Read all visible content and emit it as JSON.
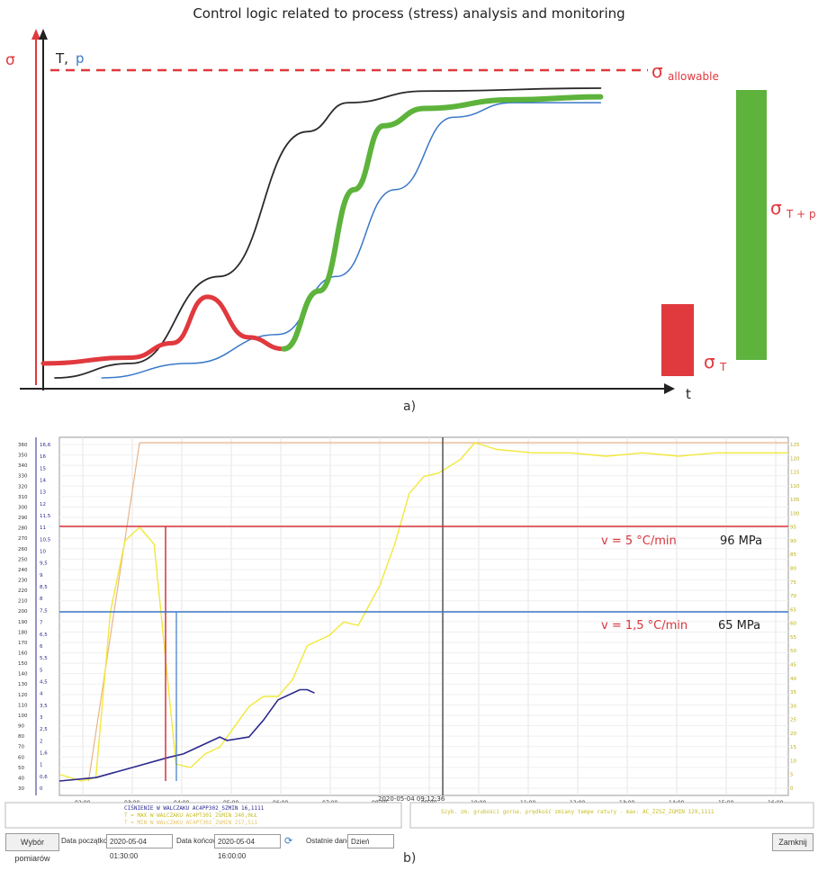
{
  "colors": {
    "red": "#e0393e",
    "green": "#5db33b",
    "blue": "#3a78c9",
    "black": "#2a2a2a",
    "yellow": "#f2e83a",
    "navy": "#2b2a8c",
    "peach": "#e8b48a"
  },
  "chart_data": [
    {
      "type": "line",
      "title": "Control logic related to process (stress) analysis and monitoring",
      "caption": "a)",
      "axis_left_label": "σ",
      "axis_right_label_T": "T,",
      "axis_right_label_p": "p",
      "xlabel": "t",
      "allowable_label": "σ",
      "allowable_sub": "allowable",
      "sigmaT_label": "σ",
      "sigmaT_sub": "T",
      "sigmaTp_label": "σ",
      "sigmaTp_sub": "T + p",
      "series": [
        {
          "color": "black",
          "points": [
            [
              0.02,
              0.0
            ],
            [
              0.15,
              0.05
            ],
            [
              0.3,
              0.35
            ],
            [
              0.45,
              0.85
            ],
            [
              0.52,
              0.95
            ],
            [
              0.65,
              0.99
            ],
            [
              0.95,
              1.0
            ]
          ]
        },
        {
          "color": "blue",
          "points": [
            [
              0.1,
              0.0
            ],
            [
              0.25,
              0.05
            ],
            [
              0.4,
              0.15
            ],
            [
              0.5,
              0.35
            ],
            [
              0.6,
              0.65
            ],
            [
              0.7,
              0.9
            ],
            [
              0.8,
              0.95
            ],
            [
              0.95,
              0.95
            ]
          ]
        },
        {
          "color": "red",
          "points": [
            [
              0.0,
              0.05
            ],
            [
              0.15,
              0.07
            ],
            [
              0.22,
              0.12
            ],
            [
              0.28,
              0.28
            ],
            [
              0.35,
              0.14
            ],
            [
              0.41,
              0.1
            ]
          ]
        },
        {
          "color": "green",
          "points": [
            [
              0.41,
              0.1
            ],
            [
              0.47,
              0.3
            ],
            [
              0.53,
              0.65
            ],
            [
              0.58,
              0.87
            ],
            [
              0.65,
              0.93
            ],
            [
              0.8,
              0.96
            ],
            [
              0.95,
              0.97
            ]
          ]
        }
      ]
    },
    {
      "type": "line",
      "caption": "b)",
      "timestamp": "2020-05-04 09:12:36",
      "x_ticks": [
        "02:00",
        "03:00",
        "04:00",
        "05:00",
        "06:00",
        "07:00",
        "08:00",
        "09:00",
        "10:00",
        "11:00",
        "12:00",
        "13:00",
        "14:00",
        "15:00",
        "16:00"
      ],
      "y_left_ticks": [
        360,
        350,
        340,
        330,
        320,
        310,
        300,
        290,
        280,
        270,
        260,
        250,
        240,
        230,
        220,
        210,
        200,
        190,
        180,
        170,
        160,
        150,
        140,
        130,
        120,
        110,
        100,
        90,
        80,
        70,
        60,
        50,
        40,
        30
      ],
      "y_left2_ticks": [
        "16,6",
        "16",
        "15",
        "14",
        "13",
        "12",
        "11,5",
        "11",
        "10,5",
        "10",
        "9,5",
        "9",
        "8,5",
        "8",
        "7,5",
        "7",
        "6,5",
        "6",
        "5,5",
        "5",
        "4,5",
        "4",
        "3,5",
        "3",
        "2,5",
        "2",
        "1,6",
        "1",
        "0,6",
        "0"
      ],
      "y_right_ticks": [
        125,
        120,
        115,
        110,
        105,
        100,
        95,
        90,
        85,
        80,
        75,
        70,
        65,
        60,
        55,
        50,
        45,
        40,
        35,
        30,
        25,
        20,
        15,
        10,
        5,
        0
      ],
      "annotation_high_label": "v = 5 °C/min",
      "annotation_high_value": "96 MPa",
      "annotation_low_label": "v = 1,5 °C/min",
      "annotation_low_value": "65 MPa",
      "legend_left": [
        "CIŚNIENIE W WALCZAKU AC4PP302_SZMIN 16,1111",
        "T = MAX W WALCZAKU  AC4PT301_ZGMIN 240,0ŁŁ",
        "T = MIN W WALCZAKU  AC4PT302_ZGMIN 217,511"
      ],
      "legend_right": "Szyb. zm. grubości gorna. prędkość zmiany tempe ratury - max: AC_ZZSZ_ZGMIN 129,1111",
      "series": [
        {
          "color": "navy",
          "points": [
            [
              0.0,
              0.0
            ],
            [
              0.05,
              0.01
            ],
            [
              0.1,
              0.04
            ],
            [
              0.15,
              0.07
            ],
            [
              0.17,
              0.08
            ],
            [
              0.2,
              0.11
            ],
            [
              0.22,
              0.13
            ],
            [
              0.23,
              0.12
            ],
            [
              0.26,
              0.13
            ],
            [
              0.28,
              0.18
            ],
            [
              0.3,
              0.24
            ],
            [
              0.33,
              0.27
            ],
            [
              0.34,
              0.27
            ],
            [
              0.35,
              0.26
            ]
          ]
        },
        {
          "color": "yellow",
          "points": [
            [
              0.0,
              0.02
            ],
            [
              0.03,
              0.0
            ],
            [
              0.05,
              0.01
            ],
            [
              0.07,
              0.5
            ],
            [
              0.09,
              0.71
            ],
            [
              0.11,
              0.75
            ],
            [
              0.13,
              0.7
            ],
            [
              0.16,
              0.05
            ],
            [
              0.18,
              0.04
            ],
            [
              0.2,
              0.08
            ],
            [
              0.22,
              0.1
            ],
            [
              0.24,
              0.16
            ],
            [
              0.26,
              0.22
            ],
            [
              0.28,
              0.25
            ],
            [
              0.3,
              0.25
            ],
            [
              0.32,
              0.3
            ],
            [
              0.34,
              0.4
            ],
            [
              0.37,
              0.43
            ],
            [
              0.39,
              0.47
            ],
            [
              0.41,
              0.46
            ],
            [
              0.44,
              0.58
            ],
            [
              0.46,
              0.7
            ],
            [
              0.48,
              0.85
            ],
            [
              0.5,
              0.9
            ],
            [
              0.52,
              0.91
            ],
            [
              0.55,
              0.95
            ],
            [
              0.57,
              1.0
            ],
            [
              0.6,
              0.98
            ],
            [
              0.65,
              0.97
            ],
            [
              0.7,
              0.97
            ],
            [
              0.75,
              0.96
            ],
            [
              0.8,
              0.97
            ],
            [
              0.85,
              0.96
            ],
            [
              0.9,
              0.97
            ],
            [
              1.0,
              0.97
            ]
          ]
        },
        {
          "color": "peach",
          "points": [
            [
              0.04,
              0.0
            ],
            [
              0.11,
              1.0
            ],
            [
              1.0,
              1.0
            ]
          ]
        }
      ]
    }
  ],
  "controls": {
    "measurements_button": "Wybór pomiarów",
    "start_label": "Data początkowa:",
    "start_value": "2020-05-04 01:30:00",
    "end_label": "Data końcowa:",
    "end_value": "2020-05-04 16:00:00",
    "last_data_label": "Ostatnie dane:",
    "last_data_value": "Dzień",
    "close_button": "Zamknij"
  }
}
